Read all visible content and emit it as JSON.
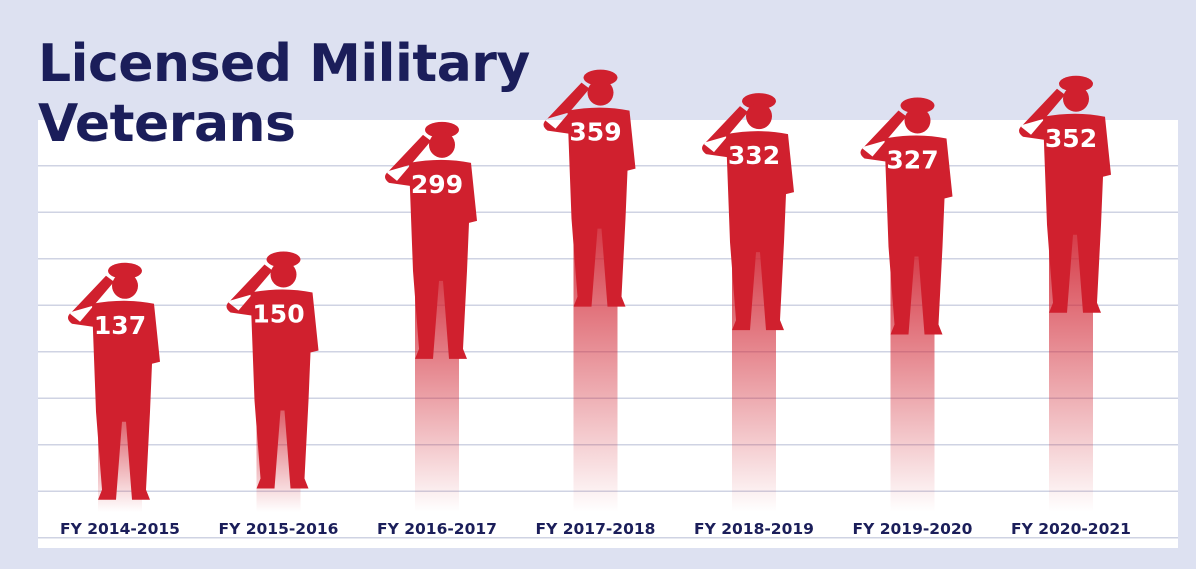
{
  "chart_data": {
    "type": "pictograph",
    "title": "Licensed Military Veterans",
    "categories": [
      "FY 2014-2015",
      "FY 2015-2016",
      "FY 2016-2017",
      "FY 2017-2018",
      "FY 2018-2019",
      "FY 2019-2020",
      "FY 2020-2021"
    ],
    "values": [
      137,
      150,
      299,
      359,
      332,
      327,
      352
    ],
    "color": "#d0202e"
  }
}
